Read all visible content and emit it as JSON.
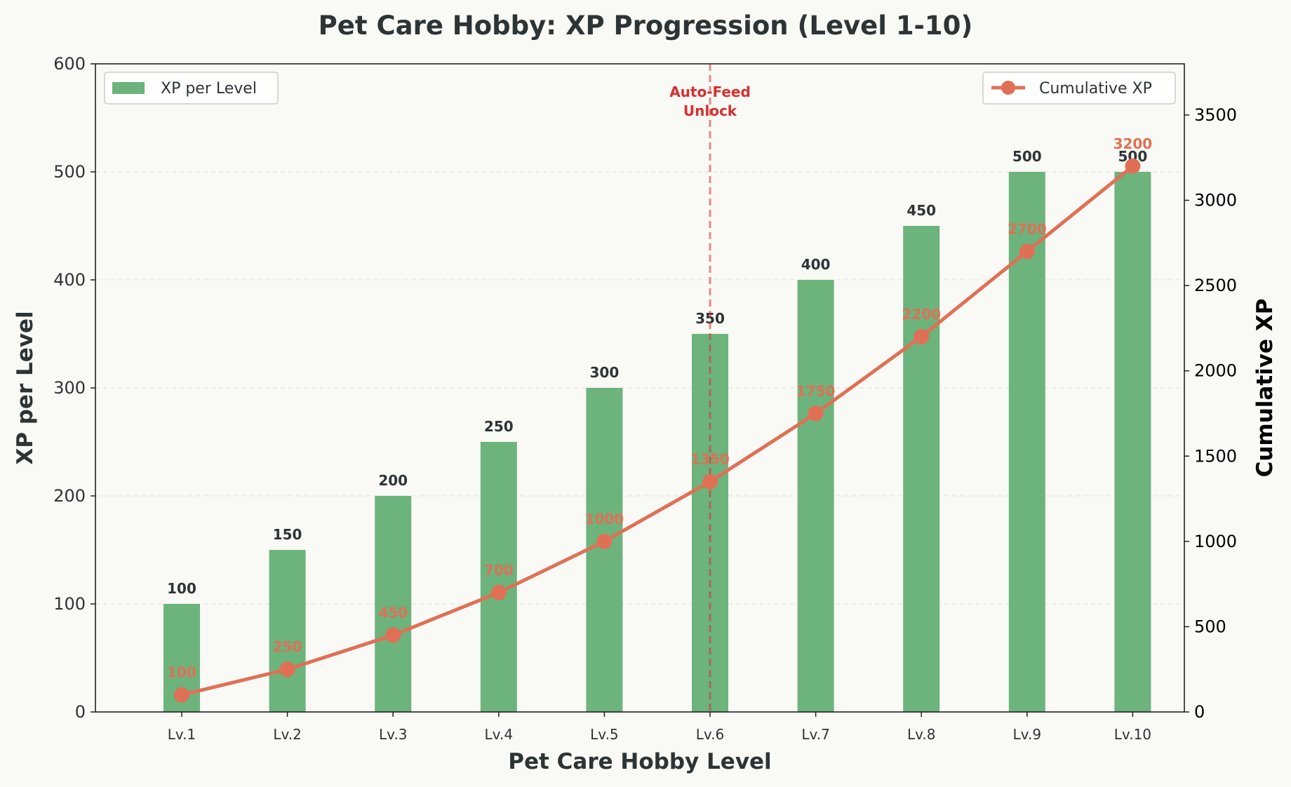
{
  "chart_data": {
    "type": "bar",
    "title": "Pet Care Hobby: XP Progression (Level 1-10)",
    "xlabel": "Pet Care Hobby Level",
    "ylabel": "XP per Level",
    "y2label": "Cumulative XP",
    "categories": [
      "Lv.1",
      "Lv.2",
      "Lv.3",
      "Lv.4",
      "Lv.5",
      "Lv.6",
      "Lv.7",
      "Lv.8",
      "Lv.9",
      "Lv.10"
    ],
    "ylim": [
      0,
      600
    ],
    "y2lim": [
      0,
      3800
    ],
    "yticks": [
      0,
      100,
      200,
      300,
      400,
      500,
      600
    ],
    "y2ticks": [
      0,
      500,
      1000,
      1500,
      2000,
      2500,
      3000,
      3500
    ],
    "grid": "horizontal dashed",
    "series": [
      {
        "name": "XP per Level",
        "type": "bar",
        "axis": "left",
        "color": "#6db37c",
        "values": [
          100,
          150,
          200,
          250,
          300,
          350,
          400,
          450,
          500,
          500
        ],
        "labels": [
          "100",
          "150",
          "200",
          "250",
          "300",
          "350",
          "400",
          "450",
          "500",
          "500"
        ]
      },
      {
        "name": "Cumulative XP",
        "type": "line",
        "axis": "right",
        "color": "#e07055",
        "values": [
          100,
          250,
          450,
          700,
          1000,
          1350,
          1750,
          2200,
          2700,
          3200
        ],
        "labels": [
          "100",
          "250",
          "450",
          "700",
          "1000",
          "1350",
          "1750",
          "2200",
          "2700",
          "3200"
        ]
      }
    ],
    "annotation": {
      "category": "Lv.6",
      "lines": [
        "Auto-Feed",
        "Unlock"
      ],
      "color": "#d63031"
    },
    "legends": {
      "left": {
        "position": "top-left",
        "entry": "XP per Level"
      },
      "right": {
        "position": "top-right",
        "entry": "Cumulative XP"
      }
    }
  }
}
